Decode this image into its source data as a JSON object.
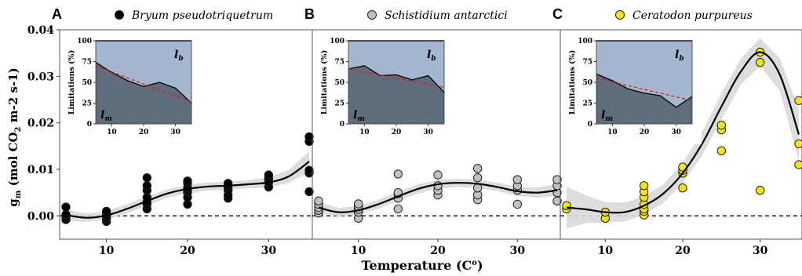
{
  "y_label": {
    "main": "g",
    "sub": "m",
    "units_a": " (mol CO",
    "units_sub": "2",
    "units_b": " m-2 s-1)"
  },
  "x_label": "Temperature (C",
  "x_label_sup": "o",
  "x_label_close": ")",
  "colors": {
    "grid_dash": "#000000",
    "ribbon": "#d9d9d9",
    "fit": "#000000",
    "inset_upper": "#a5b6cf",
    "inset_lower": "#5f6c7c",
    "inset_trend": "#e31a1c"
  },
  "chart_data": [
    {
      "type": "scatter",
      "panel": "A",
      "species": "Bryum pseudotriquetrum",
      "marker_color": "#000000",
      "xlabel": "Temperature (Co)",
      "ylabel": "gm (mol CO2 m-2 s-1)",
      "xlim": [
        5,
        35
      ],
      "ylim": [
        -0.005,
        0.04
      ],
      "xticks": [
        10,
        20,
        30
      ],
      "yticks": [
        "0.00",
        "0.01",
        "0.02",
        "0.03",
        "0.04"
      ],
      "points": [
        [
          5,
          -0.0008
        ],
        [
          5,
          -0.0003
        ],
        [
          5,
          0.0003
        ],
        [
          5,
          0.0019
        ],
        [
          10,
          -0.0012
        ],
        [
          10,
          -0.0006
        ],
        [
          10,
          0.0
        ],
        [
          10,
          0.0006
        ],
        [
          10,
          0.001
        ],
        [
          15,
          0.0015
        ],
        [
          15,
          0.0025
        ],
        [
          15,
          0.003
        ],
        [
          15,
          0.004
        ],
        [
          15,
          0.0055
        ],
        [
          15,
          0.0065
        ],
        [
          15,
          0.0082
        ],
        [
          20,
          0.0025
        ],
        [
          20,
          0.004
        ],
        [
          20,
          0.005
        ],
        [
          20,
          0.0055
        ],
        [
          20,
          0.006
        ],
        [
          20,
          0.007
        ],
        [
          20,
          0.0075
        ],
        [
          25,
          0.0038
        ],
        [
          25,
          0.0045
        ],
        [
          25,
          0.0055
        ],
        [
          25,
          0.006
        ],
        [
          25,
          0.0065
        ],
        [
          25,
          0.007
        ],
        [
          30,
          0.0062
        ],
        [
          30,
          0.0072
        ],
        [
          30,
          0.0078
        ],
        [
          30,
          0.0082
        ],
        [
          30,
          0.0088
        ],
        [
          35,
          0.0052
        ],
        [
          35,
          0.0092
        ],
        [
          35,
          0.0098
        ],
        [
          35,
          0.016
        ],
        [
          35,
          0.017
        ]
      ],
      "fit": [
        [
          5,
          0.0002
        ],
        [
          7.5,
          -0.0004
        ],
        [
          10,
          0.0001
        ],
        [
          12.5,
          0.0015
        ],
        [
          15,
          0.0032
        ],
        [
          17.5,
          0.0048
        ],
        [
          20,
          0.0058
        ],
        [
          22.5,
          0.0063
        ],
        [
          25,
          0.0065
        ],
        [
          27.5,
          0.0068
        ],
        [
          30,
          0.0072
        ],
        [
          32.5,
          0.0085
        ],
        [
          35,
          0.0117
        ]
      ],
      "band": [
        0.0012,
        0.0009,
        0.0009,
        0.001,
        0.001,
        0.0009,
        0.0009,
        0.0009,
        0.0009,
        0.0009,
        0.0011,
        0.0014,
        0.0022
      ],
      "inset": {
        "ylabel": "Limitations (%)",
        "yticks": [
          0,
          25,
          50,
          75,
          100
        ],
        "xticks": [
          10,
          20,
          30
        ],
        "upper_label": "l",
        "upper_sub": "b",
        "lower_label": "l",
        "lower_sub": "m",
        "boundary": [
          [
            5,
            74
          ],
          [
            10,
            62
          ],
          [
            15,
            52
          ],
          [
            20,
            45
          ],
          [
            25,
            50
          ],
          [
            30,
            43
          ],
          [
            35,
            25
          ]
        ],
        "trend": [
          [
            5,
            70
          ],
          [
            35,
            26
          ]
        ]
      }
    },
    {
      "type": "scatter",
      "panel": "B",
      "species": "Schistidium antarctici",
      "marker_color": "#c0c0c0",
      "xlabel": "Temperature (Co)",
      "ylabel": "gm (mol CO2 m-2 s-1)",
      "xlim": [
        5,
        35
      ],
      "ylim": [
        -0.005,
        0.04
      ],
      "xticks": [
        10,
        20,
        30
      ],
      "points": [
        [
          5,
          0.0006
        ],
        [
          5,
          0.0012
        ],
        [
          5,
          0.0018
        ],
        [
          5,
          0.0025
        ],
        [
          5,
          0.0032
        ],
        [
          10,
          -0.0005
        ],
        [
          10,
          0.0008
        ],
        [
          10,
          0.0014
        ],
        [
          10,
          0.002
        ],
        [
          10,
          0.0026
        ],
        [
          15,
          0.0015
        ],
        [
          15,
          0.0038
        ],
        [
          15,
          0.0048
        ],
        [
          15,
          0.005
        ],
        [
          15,
          0.009
        ],
        [
          20,
          0.0045
        ],
        [
          20,
          0.0055
        ],
        [
          20,
          0.0065
        ],
        [
          20,
          0.0088
        ],
        [
          25,
          0.0035
        ],
        [
          25,
          0.0045
        ],
        [
          25,
          0.006
        ],
        [
          25,
          0.0082
        ],
        [
          25,
          0.0102
        ],
        [
          30,
          0.0025
        ],
        [
          30,
          0.0055
        ],
        [
          30,
          0.0065
        ],
        [
          30,
          0.0078
        ],
        [
          35,
          0.0032
        ],
        [
          35,
          0.005
        ],
        [
          35,
          0.0065
        ],
        [
          35,
          0.0078
        ]
      ],
      "fit": [
        [
          5,
          0.0018
        ],
        [
          7.5,
          0.0008
        ],
        [
          10,
          0.0012
        ],
        [
          12.5,
          0.0025
        ],
        [
          15,
          0.0042
        ],
        [
          17.5,
          0.0058
        ],
        [
          20,
          0.0068
        ],
        [
          22.5,
          0.0071
        ],
        [
          25,
          0.0069
        ],
        [
          27.5,
          0.0062
        ],
        [
          30,
          0.0053
        ],
        [
          32.5,
          0.005
        ],
        [
          35,
          0.0055
        ]
      ],
      "band": [
        0.0012,
        0.0009,
        0.0009,
        0.001,
        0.001,
        0.001,
        0.0009,
        0.0009,
        0.0009,
        0.0009,
        0.001,
        0.0011,
        0.0013
      ],
      "inset": {
        "ylabel": "Limitations (%)",
        "yticks": [
          0,
          25,
          50,
          75,
          100
        ],
        "xticks": [
          10,
          20,
          30
        ],
        "upper_label": "l",
        "upper_sub": "b",
        "lower_label": "l",
        "lower_sub": "m",
        "boundary": [
          [
            5,
            66
          ],
          [
            10,
            70
          ],
          [
            15,
            58
          ],
          [
            20,
            59
          ],
          [
            25,
            53
          ],
          [
            30,
            58
          ],
          [
            35,
            38
          ]
        ],
        "trend": [
          [
            5,
            66
          ],
          [
            35,
            44
          ]
        ]
      }
    },
    {
      "type": "scatter",
      "panel": "C",
      "species": "Ceratodon purpureus",
      "marker_color": "#f2e415",
      "xlabel": "Temperature (Co)",
      "ylabel": "gm (mol CO2 m-2 s-1)",
      "xlim": [
        5,
        35
      ],
      "ylim": [
        -0.005,
        0.04
      ],
      "xticks": [
        10,
        20,
        30
      ],
      "points": [
        [
          5,
          0.0015
        ],
        [
          5,
          0.0022
        ],
        [
          10,
          -0.0005
        ],
        [
          10,
          0.0008
        ],
        [
          15,
          0.0002
        ],
        [
          15,
          0.001
        ],
        [
          15,
          0.0015
        ],
        [
          15,
          0.0025
        ],
        [
          15,
          0.004
        ],
        [
          15,
          0.0052
        ],
        [
          15,
          0.0065
        ],
        [
          20,
          0.006
        ],
        [
          20,
          0.0092
        ],
        [
          20,
          0.0098
        ],
        [
          20,
          0.0105
        ],
        [
          25,
          0.014
        ],
        [
          25,
          0.0185
        ],
        [
          25,
          0.0195
        ],
        [
          30,
          0.0055
        ],
        [
          30,
          0.033
        ],
        [
          30,
          0.0352
        ],
        [
          35,
          0.011
        ],
        [
          35,
          0.0155
        ],
        [
          35,
          0.0248
        ]
      ],
      "fit": [
        [
          5,
          0.0018
        ],
        [
          7.5,
          0.0014
        ],
        [
          10,
          0.0008
        ],
        [
          12.5,
          0.0008
        ],
        [
          15,
          0.0022
        ],
        [
          17.5,
          0.0048
        ],
        [
          20,
          0.0092
        ],
        [
          22.5,
          0.0155
        ],
        [
          25,
          0.0235
        ],
        [
          27.5,
          0.031
        ],
        [
          30,
          0.0352
        ],
        [
          32.5,
          0.0305
        ],
        [
          35,
          0.0175
        ]
      ],
      "band": [
        0.0045,
        0.003,
        0.0022,
        0.002,
        0.002,
        0.002,
        0.0022,
        0.0025,
        0.0028,
        0.0028,
        0.003,
        0.0035,
        0.0055
      ],
      "inset": {
        "ylabel": "Limitations (%)",
        "yticks": [
          0,
          25,
          50,
          75,
          100
        ],
        "xticks": [
          10,
          20,
          30
        ],
        "upper_label": "l",
        "upper_sub": "b",
        "lower_label": "l",
        "lower_sub": "m",
        "boundary": [
          [
            5,
            60
          ],
          [
            10,
            52
          ],
          [
            15,
            42
          ],
          [
            20,
            37
          ],
          [
            25,
            34
          ],
          [
            30,
            20
          ],
          [
            35,
            33
          ]
        ],
        "trend": [
          [
            5,
            55
          ],
          [
            35,
            28
          ]
        ]
      }
    }
  ]
}
